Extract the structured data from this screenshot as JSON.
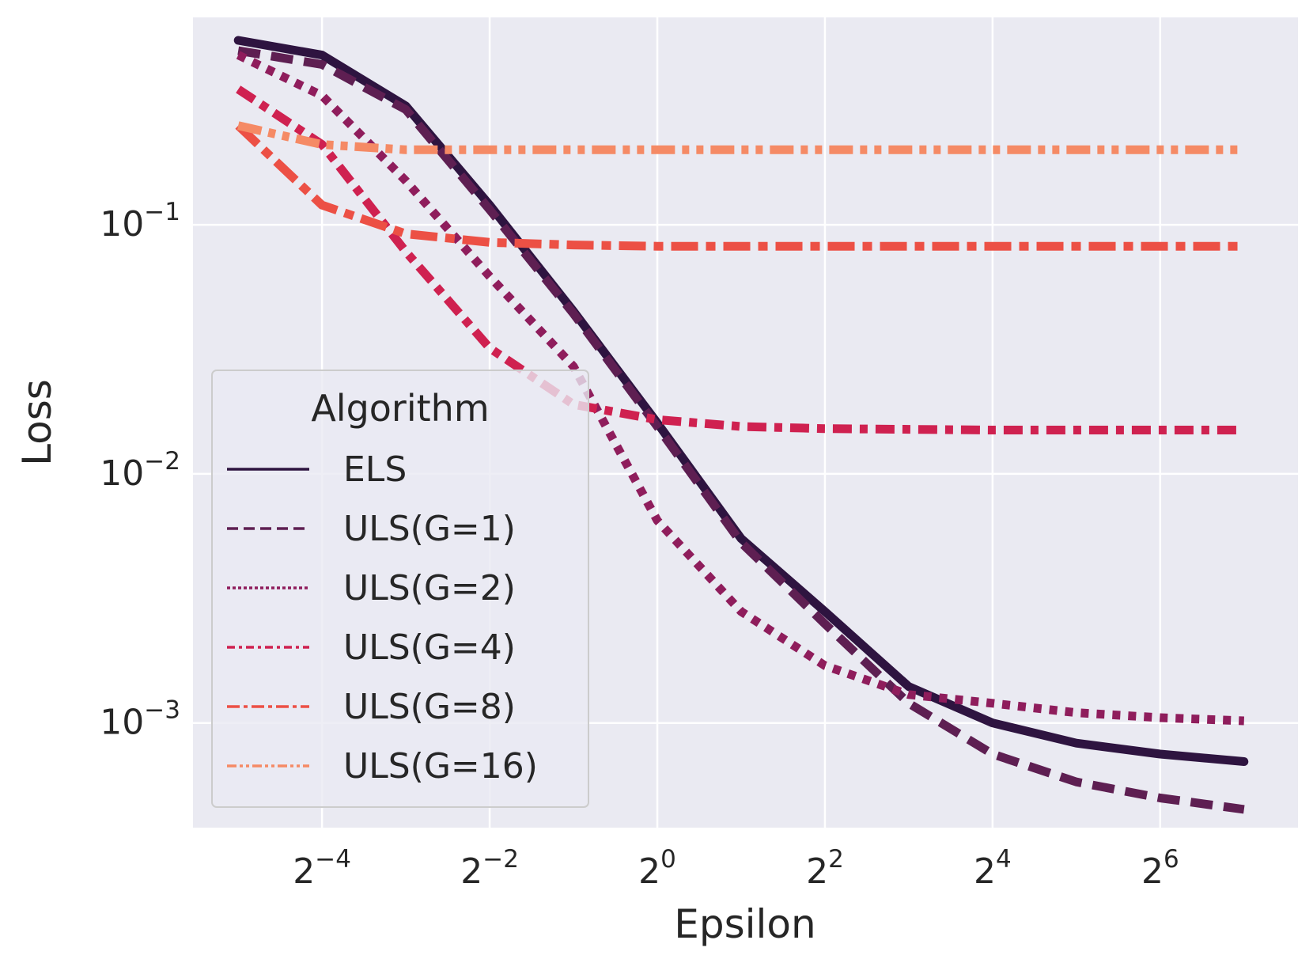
{
  "chart_data": {
    "type": "line",
    "title": "",
    "xlabel": "Epsilon",
    "ylabel": "Loss",
    "xscale": "log2",
    "yscale": "log10",
    "x": [
      0.03125,
      0.0625,
      0.125,
      0.25,
      0.5,
      1,
      2,
      4,
      8,
      16,
      32,
      64,
      128
    ],
    "xlim": [
      0.0215,
      200
    ],
    "ylim": [
      0.00038,
      0.68
    ],
    "x_ticks": [
      {
        "value": 0.0625,
        "base": "2",
        "exp": "−4"
      },
      {
        "value": 0.25,
        "base": "2",
        "exp": "−2"
      },
      {
        "value": 1,
        "base": "2",
        "exp": "0"
      },
      {
        "value": 4,
        "base": "2",
        "exp": "2"
      },
      {
        "value": 16,
        "base": "2",
        "exp": "4"
      },
      {
        "value": 64,
        "base": "2",
        "exp": "6"
      }
    ],
    "y_ticks": [
      {
        "value": 0.1,
        "base": "10",
        "exp": "−1"
      },
      {
        "value": 0.01,
        "base": "10",
        "exp": "−2"
      },
      {
        "value": 0.001,
        "base": "10",
        "exp": "−3"
      }
    ],
    "grid": true,
    "legend": {
      "title": "Algorithm",
      "position": "lower-left"
    },
    "series": [
      {
        "name": "ELS",
        "color": "#2e1440",
        "dash": "solid",
        "values": [
          0.55,
          0.48,
          0.3,
          0.12,
          0.045,
          0.016,
          0.0055,
          0.0028,
          0.0014,
          0.001,
          0.00083,
          0.00075,
          0.0007
        ]
      },
      {
        "name": "ULS(G=1)",
        "color": "#5e1f52",
        "dash": "dashed",
        "values": [
          0.5,
          0.44,
          0.29,
          0.115,
          0.044,
          0.0155,
          0.0053,
          0.0025,
          0.0012,
          0.00075,
          0.00058,
          0.0005,
          0.00045
        ]
      },
      {
        "name": "ULS(G=2)",
        "color": "#8f1d5c",
        "dash": "dotted",
        "values": [
          0.48,
          0.33,
          0.15,
          0.062,
          0.027,
          0.0065,
          0.0028,
          0.0017,
          0.0013,
          0.0012,
          0.0011,
          0.00105,
          0.00102
        ]
      },
      {
        "name": "ULS(G=4)",
        "color": "#cf2150",
        "dash": "dashdot-short",
        "values": [
          0.35,
          0.21,
          0.078,
          0.032,
          0.019,
          0.0165,
          0.0155,
          0.0152,
          0.0151,
          0.015,
          0.015,
          0.015,
          0.015
        ]
      },
      {
        "name": "ULS(G=8)",
        "color": "#ec5045",
        "dash": "dashdot",
        "values": [
          0.25,
          0.12,
          0.092,
          0.085,
          0.083,
          0.082,
          0.082,
          0.082,
          0.082,
          0.082,
          0.082,
          0.082,
          0.082
        ]
      },
      {
        "name": "ULS(G=16)",
        "color": "#f58a65",
        "dash": "dashdotdot",
        "values": [
          0.25,
          0.21,
          0.2,
          0.2,
          0.2,
          0.2,
          0.2,
          0.2,
          0.2,
          0.2,
          0.2,
          0.2,
          0.2
        ]
      }
    ]
  }
}
